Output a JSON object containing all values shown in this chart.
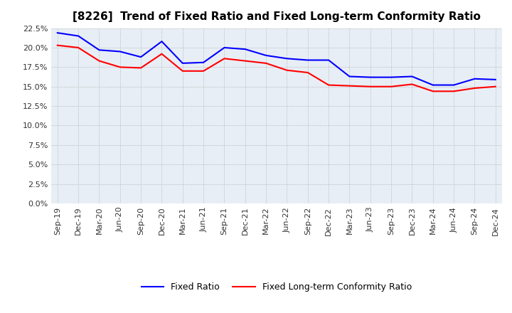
{
  "title": "[8226]  Trend of Fixed Ratio and Fixed Long-term Conformity Ratio",
  "x_labels": [
    "Sep-19",
    "Dec-19",
    "Mar-20",
    "Jun-20",
    "Sep-20",
    "Dec-20",
    "Mar-21",
    "Jun-21",
    "Sep-21",
    "Dec-21",
    "Mar-22",
    "Jun-22",
    "Sep-22",
    "Dec-22",
    "Mar-23",
    "Jun-23",
    "Sep-23",
    "Dec-23",
    "Mar-24",
    "Jun-24",
    "Sep-24",
    "Dec-24"
  ],
  "fixed_ratio": [
    0.219,
    0.215,
    0.197,
    0.195,
    0.188,
    0.208,
    0.18,
    0.181,
    0.2,
    0.198,
    0.19,
    0.186,
    0.184,
    0.184,
    0.163,
    0.162,
    0.162,
    0.163,
    0.152,
    0.152,
    0.16,
    0.159
  ],
  "fixed_lt_ratio": [
    0.203,
    0.2,
    0.183,
    0.175,
    0.174,
    0.192,
    0.17,
    0.17,
    0.186,
    0.183,
    0.18,
    0.171,
    0.168,
    0.152,
    0.151,
    0.15,
    0.15,
    0.153,
    0.144,
    0.144,
    0.148,
    0.15
  ],
  "fixed_ratio_color": "#0000ff",
  "fixed_lt_ratio_color": "#ff0000",
  "ylim": [
    0.0,
    0.225
  ],
  "yticks": [
    0.0,
    0.025,
    0.05,
    0.075,
    0.1,
    0.125,
    0.15,
    0.175,
    0.2,
    0.225
  ],
  "legend_fixed": "Fixed Ratio",
  "legend_lt": "Fixed Long-term Conformity Ratio",
  "background_color": "#ffffff",
  "plot_bg_color": "#e8eef5",
  "grid_color": "#aaaaaa",
  "title_fontsize": 11,
  "tick_fontsize": 8,
  "legend_fontsize": 9,
  "line_width": 1.5
}
